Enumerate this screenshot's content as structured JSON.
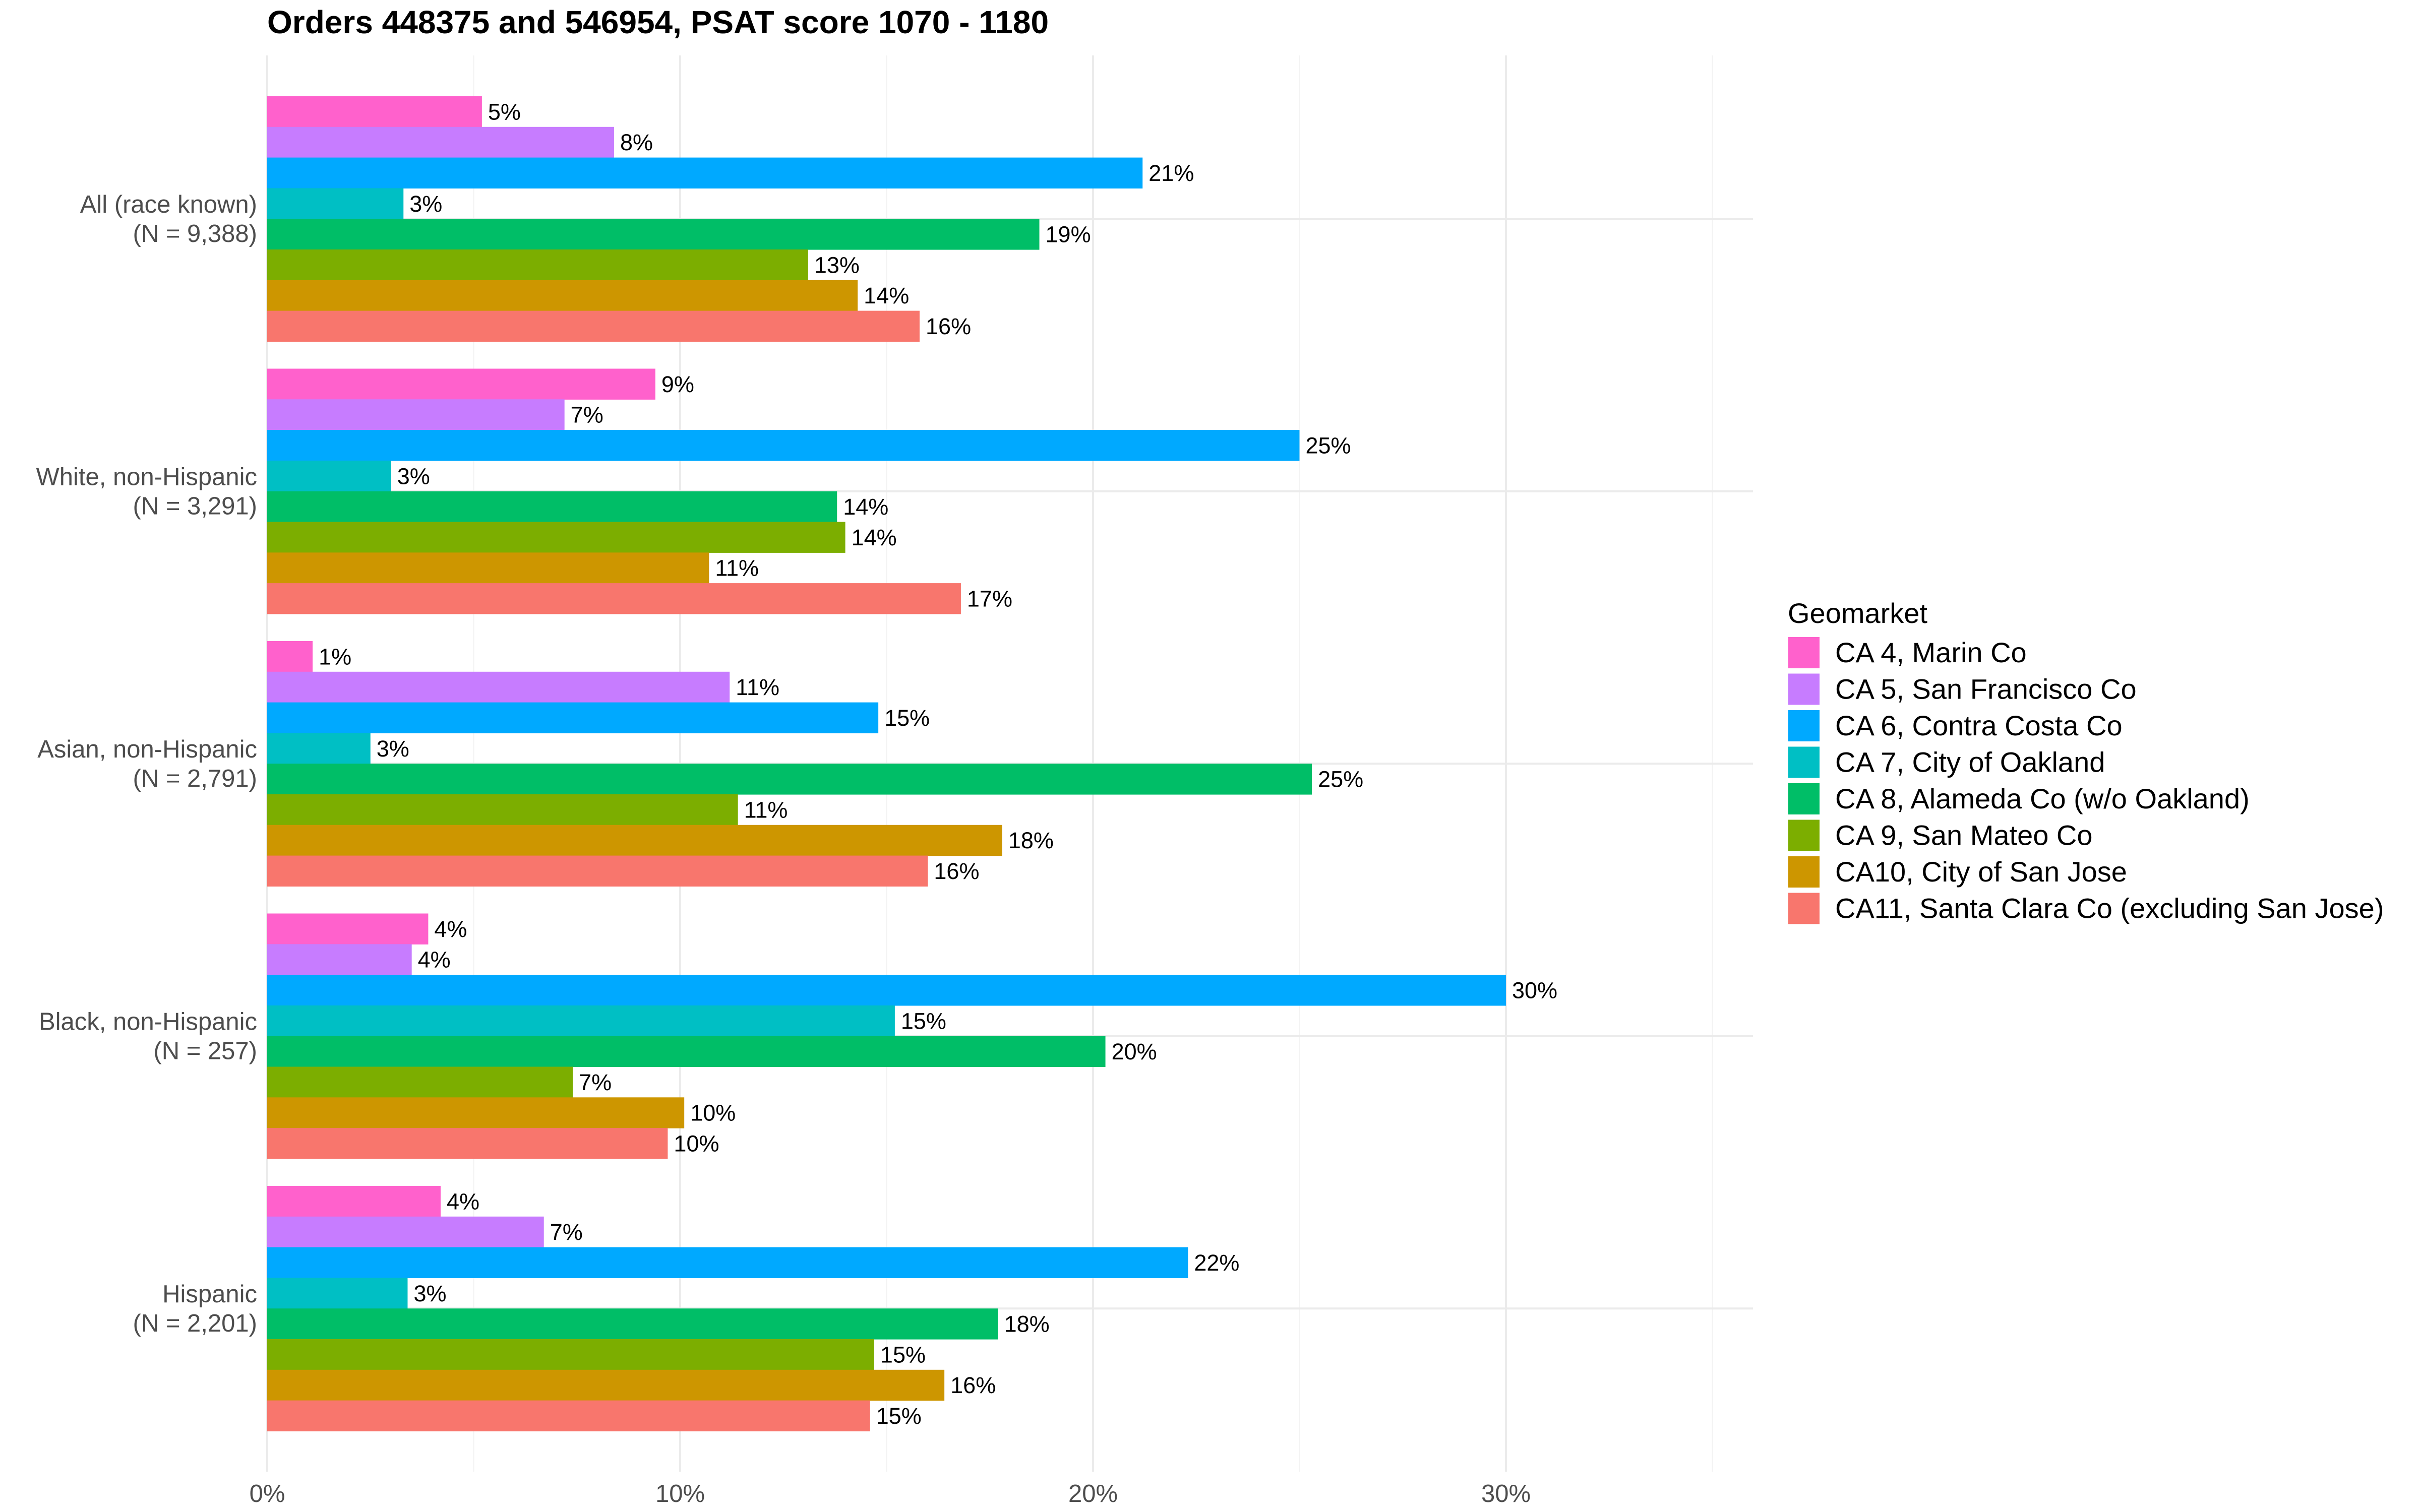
{
  "chart_data": {
    "type": "bar",
    "orientation": "horizontal",
    "title": "Orders 448375 and 546954, PSAT score 1070 - 1180",
    "xlabel": "",
    "ylabel": "",
    "xlim": [
      0,
      36
    ],
    "x_ticks": [
      0,
      10,
      20,
      30
    ],
    "x_tick_labels": [
      "0%",
      "10%",
      "20%",
      "30%"
    ],
    "grid": true,
    "legend_title": "Geomarket",
    "legend_position": "right",
    "categories": [
      "All (race known)\n(N = 9,388)",
      "White, non-Hispanic\n(N = 3,291)",
      "Asian, non-Hispanic\n(N = 2,791)",
      "Black, non-Hispanic\n(N = 257)",
      "Hispanic\n(N = 2,201)"
    ],
    "category_lines": [
      [
        "All (race known)",
        "(N = 9,388)"
      ],
      [
        "White, non-Hispanic",
        "(N = 3,291)"
      ],
      [
        "Asian, non-Hispanic",
        "(N = 2,791)"
      ],
      [
        "Black, non-Hispanic",
        "(N = 257)"
      ],
      [
        "Hispanic",
        "(N = 2,201)"
      ]
    ],
    "series": [
      {
        "name": "CA 4, Marin Co",
        "color": "#FF61CC",
        "values": [
          5.2,
          9.4,
          1.1,
          3.9,
          4.2
        ],
        "labels": [
          "5%",
          "9%",
          "1%",
          "4%",
          "4%"
        ]
      },
      {
        "name": "CA 5, San Francisco Co",
        "color": "#C77CFF",
        "values": [
          8.4,
          7.2,
          11.2,
          3.5,
          6.7
        ],
        "labels": [
          "8%",
          "7%",
          "11%",
          "4%",
          "7%"
        ]
      },
      {
        "name": "CA 6, Contra Costa Co",
        "color": "#00A9FF",
        "values": [
          21.2,
          25.0,
          14.8,
          30.0,
          22.3
        ],
        "labels": [
          "21%",
          "25%",
          "15%",
          "30%",
          "22%"
        ]
      },
      {
        "name": "CA 7, City of Oakland",
        "color": "#00BFC4",
        "values": [
          3.3,
          3.0,
          2.5,
          15.2,
          3.4
        ],
        "labels": [
          "3%",
          "3%",
          "3%",
          "15%",
          "3%"
        ]
      },
      {
        "name": "CA 8, Alameda Co (w/o Oakland)",
        "color": "#00BE67",
        "values": [
          18.7,
          13.8,
          25.3,
          20.3,
          17.7
        ],
        "labels": [
          "19%",
          "14%",
          "25%",
          "20%",
          "18%"
        ]
      },
      {
        "name": "CA 9, San Mateo Co",
        "color": "#7CAE00",
        "values": [
          13.1,
          14.0,
          11.4,
          7.4,
          14.7
        ],
        "labels": [
          "13%",
          "14%",
          "11%",
          "7%",
          "15%"
        ]
      },
      {
        "name": "CA10, City of San Jose",
        "color": "#CD9600",
        "values": [
          14.3,
          10.7,
          17.8,
          10.1,
          16.4
        ],
        "labels": [
          "14%",
          "11%",
          "18%",
          "10%",
          "16%"
        ]
      },
      {
        "name": "CA11, Santa Clara Co (excluding San Jose)",
        "color": "#F8766D",
        "values": [
          15.8,
          16.8,
          16.0,
          9.7,
          14.6
        ],
        "labels": [
          "16%",
          "17%",
          "16%",
          "10%",
          "15%"
        ]
      }
    ]
  }
}
